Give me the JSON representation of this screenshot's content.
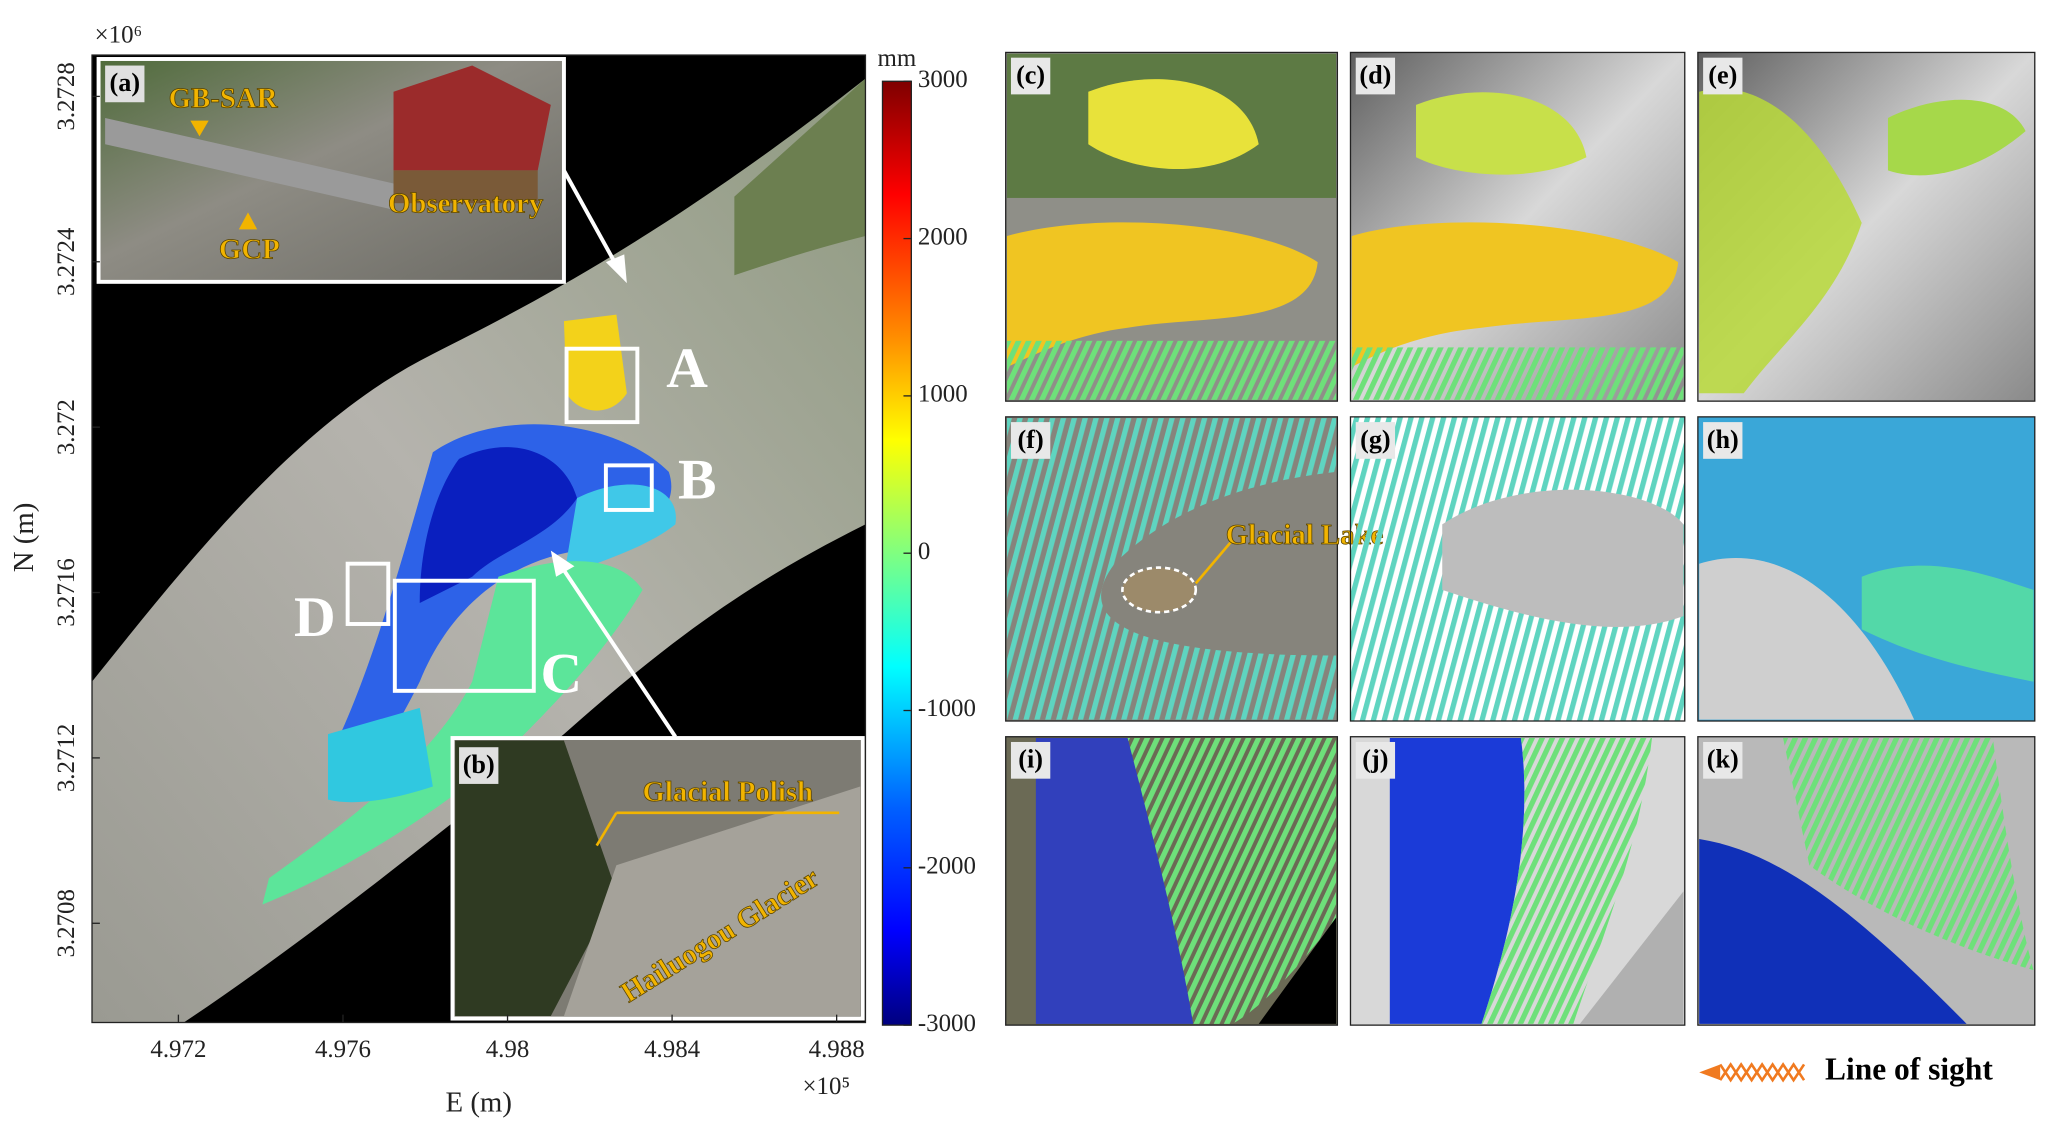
{
  "map": {
    "panel_label": "(a)",
    "x_label": "E (m)",
    "y_label": "N (m)",
    "x_multiplier": "×10⁵",
    "y_multiplier": "×10⁶",
    "xlim": [
      4.9699,
      4.9887
    ],
    "xticks": [
      4.972,
      4.976,
      4.98,
      4.984,
      4.988
    ],
    "ylim": [
      3.27056,
      3.2729
    ],
    "yticks": [
      3.2708,
      3.2712,
      3.2716,
      3.272,
      3.2724,
      3.2728
    ],
    "regions": [
      "A",
      "B",
      "C",
      "D"
    ]
  },
  "colorbar": {
    "unit": "mm",
    "clim": [
      -3000,
      3000
    ],
    "ticks": [
      -3000,
      -2000,
      -1000,
      0,
      1000,
      2000,
      3000
    ]
  },
  "inset_a": {
    "labels": [
      "GB-SAR",
      "GCP",
      "Observatory"
    ]
  },
  "inset_b": {
    "panel_label": "(b)",
    "labels": [
      "Glacial Polish",
      "Hailuogou Glacier"
    ]
  },
  "panels": [
    {
      "label": "(c)"
    },
    {
      "label": "(d)"
    },
    {
      "label": "(e)"
    },
    {
      "label": "(f)",
      "annotation": "Glacial Lake"
    },
    {
      "label": "(g)"
    },
    {
      "label": "(h)"
    },
    {
      "label": "(i)"
    },
    {
      "label": "(j)"
    },
    {
      "label": "(k)"
    }
  ],
  "legend": {
    "line_of_sight": "Line of sight"
  }
}
